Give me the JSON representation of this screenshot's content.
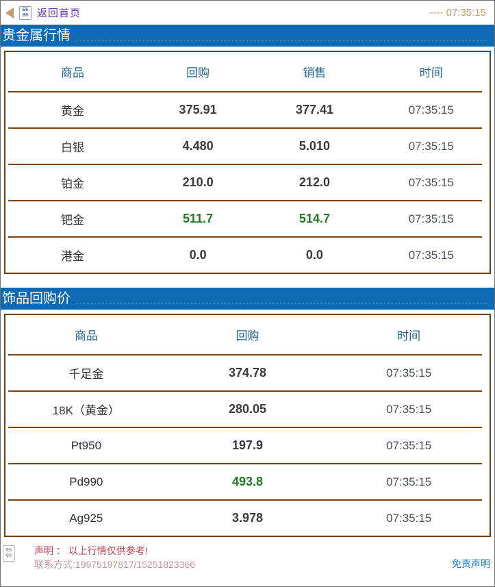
{
  "topbar": {
    "back_label": "返回首页",
    "time": "---- 07:35:15",
    "icon_fallback": {
      "line1": "E6",
      "line2": "00"
    }
  },
  "sections": [
    {
      "title": "贵金属行情",
      "columns": [
        "商品",
        "回购",
        "销售",
        "时间"
      ],
      "rows": [
        {
          "name": "黄金",
          "buy": "375.91",
          "sell": "377.41",
          "time": "07:35:15",
          "color": "dark"
        },
        {
          "name": "白银",
          "buy": "4.480",
          "sell": "5.010",
          "time": "07:35:15",
          "color": "dark"
        },
        {
          "name": "铂金",
          "buy": "210.0",
          "sell": "212.0",
          "time": "07:35:15",
          "color": "dark"
        },
        {
          "name": "钯金",
          "buy": "511.7",
          "sell": "514.7",
          "time": "07:35:15",
          "color": "green"
        },
        {
          "name": "港金",
          "buy": "0.0",
          "sell": "0.0",
          "time": "07:35:15",
          "color": "dark"
        }
      ]
    },
    {
      "title": "饰品回购价",
      "columns": [
        "商品",
        "回购",
        "时间"
      ],
      "rows": [
        {
          "name": "千足金",
          "buy": "374.78",
          "time": "07:35:15",
          "color": "dark"
        },
        {
          "name": "18K（黄金）",
          "buy": "280.05",
          "time": "07:35:15",
          "color": "dark"
        },
        {
          "name": "Pt950",
          "buy": "197.9",
          "time": "07:35:15",
          "color": "dark"
        },
        {
          "name": "Pd990",
          "buy": "493.8",
          "time": "07:35:15",
          "color": "green"
        },
        {
          "name": "Ag925",
          "buy": "3.978",
          "time": "07:35:15",
          "color": "dark"
        }
      ]
    }
  ],
  "footer": {
    "statement": "声明 ： 以上行情仅供参考!",
    "contact": "联系方式:19975197817/15251823366",
    "disclaimer_label": "免责声明",
    "icon_fallback": {
      "line1": "E6",
      "line2": "00"
    }
  },
  "colors": {
    "section_bar_blue": "#0d6ab5",
    "table_border_brown": "#70400f",
    "row_separator_brown": "#7d4512",
    "header_text_blue": "#1d6398",
    "value_green": "#1e7e1e",
    "value_dark": "#3a3a3a",
    "statement_red": "#cc3e4c",
    "contact_rose": "#c9939a",
    "topbar_tan": "#c49a6c",
    "back_link_purple": "#6136b1",
    "disclaimer_blue": "#147cd2"
  }
}
